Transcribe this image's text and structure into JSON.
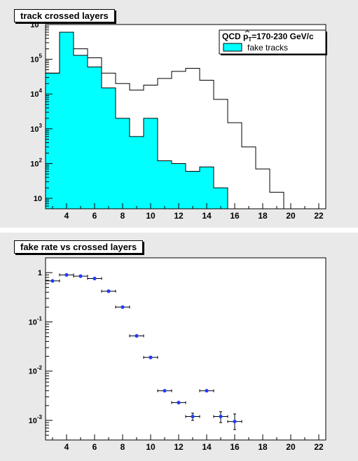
{
  "chart_data": [
    {
      "type": "histogram",
      "title": "track crossed layers",
      "log_y": true,
      "xlim": [
        2.5,
        22.5
      ],
      "ylim": [
        5,
        1000000
      ],
      "x_ticks": [
        "4",
        "6",
        "8",
        "10",
        "12",
        "14",
        "16",
        "18",
        "20",
        "22"
      ],
      "y_ticks": [
        {
          "value": 10,
          "base": "10",
          "exp": ""
        },
        {
          "value": 100,
          "base": "10",
          "exp": "2"
        },
        {
          "value": 1000,
          "base": "10",
          "exp": "3"
        },
        {
          "value": 10000,
          "base": "10",
          "exp": "4"
        },
        {
          "value": 100000,
          "base": "10",
          "exp": "5"
        },
        {
          "value": 1000000,
          "base": "10",
          "exp": "6"
        }
      ],
      "legend": {
        "title_main": "QCD ",
        "title_sym": "p",
        "title_sub": "T",
        "title_rest": "=170-230 GeV/c",
        "entry": "fake tracks"
      },
      "bins": [
        3,
        4,
        5,
        6,
        7,
        8,
        9,
        10,
        11,
        12,
        13,
        14,
        15,
        16,
        17,
        18,
        19,
        20,
        21,
        22
      ],
      "all_tracks": [
        40000,
        600000,
        200000,
        110000,
        40000,
        20000,
        13000,
        18000,
        28000,
        45000,
        55000,
        25000,
        7000,
        1500,
        300,
        70,
        15,
        3,
        0,
        0
      ],
      "fake_tracks": [
        40000,
        600000,
        130000,
        60000,
        15000,
        2000,
        600,
        2000,
        120,
        100,
        60,
        80,
        20,
        3,
        0,
        0,
        0,
        0,
        0,
        0
      ],
      "series": [
        {
          "name": "fake tracks",
          "color": "#00ffff"
        }
      ]
    },
    {
      "type": "scatter",
      "title": "fake rate vs crossed layers",
      "log_y": true,
      "xlim": [
        2.5,
        22.5
      ],
      "ylim": [
        0.0004,
        2
      ],
      "x_ticks": [
        "4",
        "6",
        "8",
        "10",
        "12",
        "14",
        "16",
        "18",
        "20",
        "22"
      ],
      "y_ticks": [
        {
          "value": 1,
          "base": "1",
          "exp": ""
        },
        {
          "value": 0.1,
          "base": "10",
          "exp": "-1"
        },
        {
          "value": 0.01,
          "base": "10",
          "exp": "-2"
        },
        {
          "value": 0.001,
          "base": "10",
          "exp": "-3"
        }
      ],
      "points": [
        {
          "x": 3,
          "y": 0.68
        },
        {
          "x": 4,
          "y": 0.9
        },
        {
          "x": 5,
          "y": 0.85
        },
        {
          "x": 6,
          "y": 0.76
        },
        {
          "x": 7,
          "y": 0.42
        },
        {
          "x": 8,
          "y": 0.2
        },
        {
          "x": 9,
          "y": 0.052
        },
        {
          "x": 10,
          "y": 0.019
        },
        {
          "x": 11,
          "y": 0.004
        },
        {
          "x": 12,
          "y": 0.0023
        },
        {
          "x": 13,
          "y": 0.0012,
          "err_lo": 0.0002,
          "err_hi": 0.0002
        },
        {
          "x": 14,
          "y": 0.004
        },
        {
          "x": 15,
          "y": 0.0012,
          "err_lo": 0.0003,
          "err_hi": 0.0003
        },
        {
          "x": 16,
          "y": 0.00095,
          "err_lo": 0.0003,
          "err_hi": 0.0004
        }
      ],
      "marker_color": "#1f3cff"
    }
  ]
}
